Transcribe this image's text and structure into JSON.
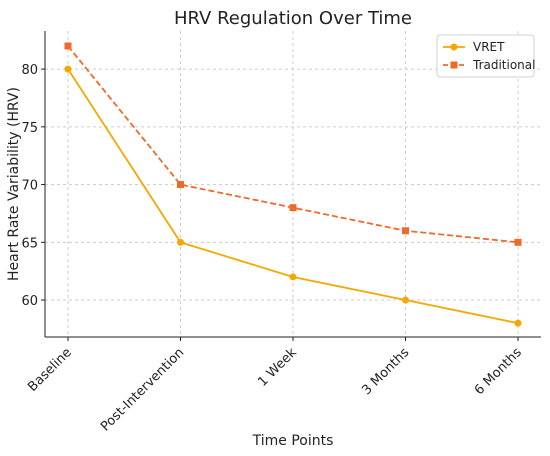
{
  "chart_data": {
    "type": "line",
    "title": "HRV Regulation Over Time",
    "xlabel": "Time Points",
    "ylabel": "Heart Rate Variability (HRV)",
    "categories": [
      "Baseline",
      "Post-Intervention",
      "1 Week",
      "3 Months",
      "6 Months"
    ],
    "ylim": [
      56.8,
      83.3
    ],
    "yticks": [
      60,
      65,
      70,
      75,
      80
    ],
    "grid": true,
    "legend_position": "top-right",
    "series": [
      {
        "name": "VRET",
        "values": [
          80,
          65,
          62,
          60,
          58
        ],
        "color": "#f5a800",
        "marker": "circle",
        "line_style": "solid"
      },
      {
        "name": "Traditional",
        "values": [
          82,
          70,
          68,
          66,
          65
        ],
        "color": "#ef6a2a",
        "marker": "square",
        "line_style": "dashed"
      }
    ]
  }
}
